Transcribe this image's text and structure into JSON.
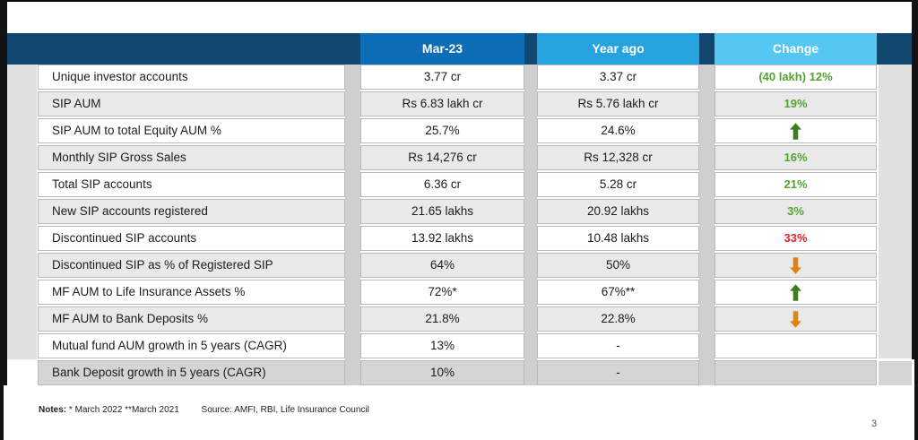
{
  "table": {
    "columns": [
      "Mar-23",
      "Year ago",
      "Change"
    ],
    "rows": [
      {
        "label": "Unique investor accounts",
        "mar23": "3.77 cr",
        "year_ago": "3.37 cr",
        "change": {
          "type": "text",
          "color": "green",
          "value": "(40 lakh) 12%"
        }
      },
      {
        "label": "SIP AUM",
        "mar23": "Rs 6.83 lakh cr",
        "year_ago": "Rs 5.76 lakh cr",
        "change": {
          "type": "text",
          "color": "green",
          "value": "19%"
        }
      },
      {
        "label": "SIP AUM to total Equity AUM %",
        "mar23": "25.7%",
        "year_ago": "24.6%",
        "change": {
          "type": "arrow",
          "dir": "up"
        }
      },
      {
        "label": "Monthly SIP Gross Sales",
        "mar23": "Rs 14,276 cr",
        "year_ago": "Rs 12,328 cr",
        "change": {
          "type": "text",
          "color": "green",
          "value": "16%"
        }
      },
      {
        "label": "Total SIP accounts",
        "mar23": "6.36 cr",
        "year_ago": "5.28 cr",
        "change": {
          "type": "text",
          "color": "green",
          "value": "21%"
        }
      },
      {
        "label": "New SIP accounts registered",
        "mar23": "21.65 lakhs",
        "year_ago": "20.92 lakhs",
        "change": {
          "type": "text",
          "color": "green",
          "value": "3%"
        }
      },
      {
        "label": "Discontinued SIP accounts",
        "mar23": "13.92 lakhs",
        "year_ago": "10.48 lakhs",
        "change": {
          "type": "text",
          "color": "red",
          "value": "33%"
        }
      },
      {
        "label": "Discontinued SIP as % of Registered SIP",
        "mar23": "64%",
        "year_ago": "50%",
        "change": {
          "type": "arrow",
          "dir": "down"
        }
      },
      {
        "label": "MF AUM to Life Insurance Assets %",
        "mar23": "72%*",
        "year_ago": "67%**",
        "change": {
          "type": "arrow",
          "dir": "up"
        }
      },
      {
        "label": "MF AUM to Bank Deposits %",
        "mar23": "21.8%",
        "year_ago": "22.8%",
        "change": {
          "type": "arrow",
          "dir": "down"
        }
      },
      {
        "label": "Mutual fund AUM growth in 5 years (CAGR)",
        "mar23": "13%",
        "year_ago": "-",
        "change": {
          "type": "none"
        }
      },
      {
        "label": "Bank Deposit growth in 5 years (CAGR)",
        "mar23": "10%",
        "year_ago": "-",
        "change": {
          "type": "none"
        }
      }
    ]
  },
  "footer": {
    "notes_label": "Notes:",
    "notes_text": "* March 2022  **March 2021",
    "source_text": "Source: AMFI, RBI, Life Insurance Council",
    "page_number": "3"
  },
  "colors": {
    "navy": "#12486f",
    "mar23": "#0d6db6",
    "yearago": "#26a3de",
    "changecol": "#55c7f2",
    "green": "#53a331",
    "red": "#e8232d",
    "green-arrow": "#3c7f1f",
    "orange-arrow": "#e0820f"
  }
}
